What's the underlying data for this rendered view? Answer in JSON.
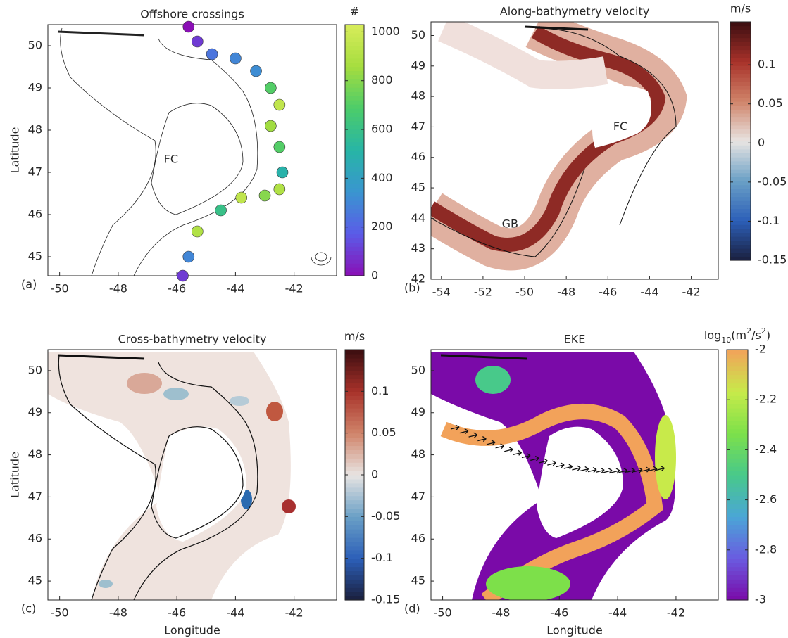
{
  "chart_data": [
    {
      "type": "track-map",
      "title": "Offshore crossings",
      "panel_label": "(a)",
      "ylabel": "Latitude",
      "xlim": [
        -50.4,
        -40.55
      ],
      "ylim": [
        44.55,
        50.5
      ],
      "xticks": [
        -50,
        -48,
        -46,
        -44,
        -42
      ],
      "yticks": [
        45,
        46,
        47,
        48,
        49,
        50
      ],
      "annotations": [
        {
          "text": "FC",
          "x": -46.2,
          "y": 47.3
        }
      ],
      "track": {
        "x": [
          -45.6,
          -45.3,
          -44.8,
          -44.0,
          -43.3,
          -42.8,
          -42.5,
          -42.8,
          -42.5,
          -42.4,
          -42.5,
          -43.0,
          -43.8,
          -44.5,
          -45.3,
          -45.6,
          -45.8
        ],
        "y": [
          50.45,
          50.1,
          49.8,
          49.7,
          49.4,
          49.0,
          48.6,
          48.1,
          47.6,
          47.0,
          46.6,
          46.45,
          46.4,
          46.1,
          45.6,
          45.0,
          44.55
        ],
        "values": [
          0,
          100,
          250,
          300,
          320,
          700,
          950,
          850,
          700,
          500,
          900,
          800,
          950,
          600,
          900,
          300,
          100
        ]
      },
      "colorbar": {
        "label": "#",
        "lim": [
          0,
          1030
        ],
        "ticks": [
          0,
          200,
          400,
          600,
          800,
          1000
        ],
        "colormap": [
          "#8a0fb5",
          "#5b5be8",
          "#3a95d0",
          "#27b5a6",
          "#4ccc6a",
          "#a5dd3f",
          "#d8ec5a"
        ]
      }
    },
    {
      "type": "velocity-map",
      "title": "Along-bathymetry velocity",
      "panel_label": "(b)",
      "xlim": [
        -54.5,
        -40.7
      ],
      "ylim": [
        42,
        50.45
      ],
      "xticks": [
        -54,
        -52,
        -50,
        -48,
        -46,
        -44,
        -42
      ],
      "yticks": [
        42,
        43,
        44,
        45,
        46,
        47,
        48,
        49,
        50
      ],
      "annotations": [
        {
          "text": "FC",
          "x": -45.4,
          "y": 47.0
        },
        {
          "text": "GB",
          "x": -50.7,
          "y": 43.8
        }
      ],
      "colorbar": {
        "label": "m/s",
        "lim": [
          -0.15,
          0.155
        ],
        "ticks": [
          -0.15,
          -0.1,
          -0.05,
          0,
          0.05,
          0.1
        ],
        "colormap": [
          "#1a1f3d",
          "#2c5fb8",
          "#6aa0c6",
          "#e8e4e2",
          "#d0846a",
          "#a8322a",
          "#3b0d10"
        ]
      }
    },
    {
      "type": "cross-map",
      "title": "Cross-bathymetry velocity",
      "panel_label": "(c)",
      "xlabel": "Longitude",
      "ylabel": "Latitude",
      "xlim": [
        -50.4,
        -40.55
      ],
      "ylim": [
        44.55,
        50.5
      ],
      "xticks": [
        -50,
        -48,
        -46,
        -44,
        -42
      ],
      "yticks": [
        45,
        46,
        47,
        48,
        49,
        50
      ],
      "colorbar": {
        "label": "m/s",
        "lim": [
          -0.15,
          0.15
        ],
        "ticks": [
          -0.15,
          -0.1,
          -0.05,
          0,
          0.05,
          0.1
        ],
        "colormap": [
          "#1a1f3d",
          "#2c5fb8",
          "#6aa0c6",
          "#e8e4e2",
          "#d0846a",
          "#a8322a",
          "#3b0d10"
        ]
      }
    },
    {
      "type": "eke-map",
      "title": "EKE",
      "panel_label": "(d)",
      "xlabel": "Longitude",
      "xlim": [
        -50.4,
        -40.55
      ],
      "ylim": [
        44.55,
        50.5
      ],
      "xticks": [
        -50,
        -48,
        -46,
        -44,
        -42
      ],
      "yticks": [
        45,
        46,
        47,
        48,
        49,
        50
      ],
      "colorbar": {
        "label": [
          "log",
          "10",
          "(m",
          "2",
          "/s",
          "2",
          ")"
        ],
        "lim": [
          -3,
          -2
        ],
        "ticks": [
          -3,
          -2.8,
          -2.6,
          -2.4,
          -2.2,
          -2
        ],
        "colormap": [
          "#7a0aa8",
          "#6a5be0",
          "#4aa6d6",
          "#48c98a",
          "#7de04a",
          "#c8ea4a",
          "#f2a25a"
        ]
      }
    }
  ]
}
